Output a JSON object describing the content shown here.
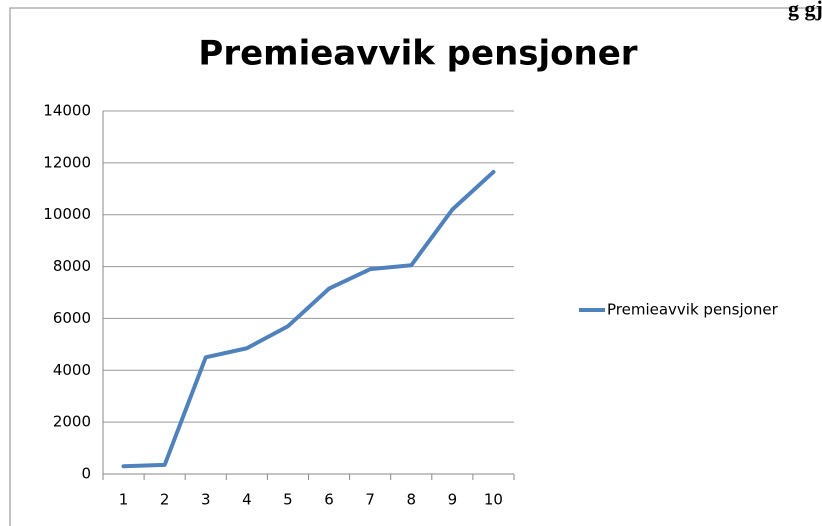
{
  "chart_data": {
    "type": "line",
    "title": "Premieavvik pensjoner",
    "annotation": "g gj",
    "categories": [
      "1",
      "2",
      "3",
      "4",
      "5",
      "6",
      "7",
      "8",
      "9",
      "10"
    ],
    "series": [
      {
        "name": "Premieavvik pensjoner",
        "color": "#4f81bd",
        "values": [
          300,
          350,
          4500,
          4850,
          5700,
          7150,
          7900,
          8050,
          10200,
          11650
        ]
      }
    ],
    "ylim": [
      0,
      14000
    ],
    "yticks": [
      0,
      2000,
      4000,
      6000,
      8000,
      10000,
      12000,
      14000
    ],
    "grid": true,
    "legend": "right"
  }
}
